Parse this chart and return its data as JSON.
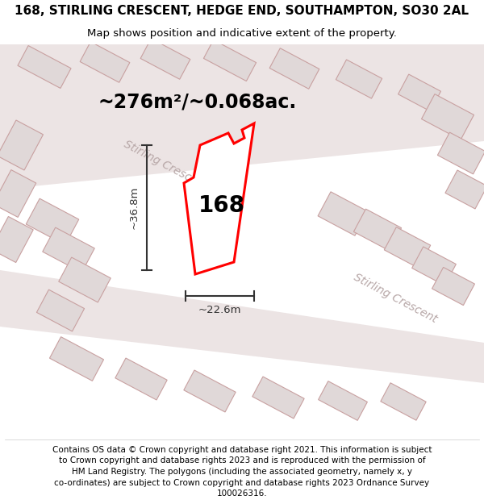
{
  "title_line1": "168, STIRLING CRESCENT, HEDGE END, SOUTHAMPTON, SO30 2AL",
  "title_line2": "Map shows position and indicative extent of the property.",
  "area_text": "~276m²/~0.068ac.",
  "width_label": "~22.6m",
  "height_label": "~36.8m",
  "plot_number": "168",
  "footer_lines": [
    "Contains OS data © Crown copyright and database right 2021. This information is subject",
    "to Crown copyright and database rights 2023 and is reproduced with the permission of",
    "HM Land Registry. The polygons (including the associated geometry, namely x, y",
    "co-ordinates) are subject to Crown copyright and database rights 2023 Ordnance Survey",
    "100026316."
  ],
  "map_bg": "#f5f0f0",
  "road_color": "#ece4e4",
  "bld_color": "#e0d8d8",
  "bld_edge": "#c8a0a0",
  "property_edge": "red",
  "road_label_color": "#b8a8a8",
  "measure_color": "#333333",
  "title_fontsize": 11,
  "subtitle_fontsize": 9.5,
  "area_fontsize": 17,
  "plot_num_fontsize": 20,
  "road_label_fontsize": 10,
  "measure_fontsize": 9.5,
  "footer_fontsize": 7.5
}
